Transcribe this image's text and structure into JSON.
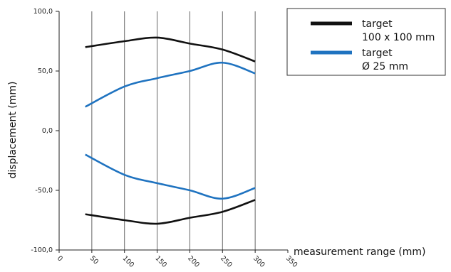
{
  "chart_data": {
    "type": "line",
    "xlabel": "measurement range (mm)",
    "ylabel": "displacement (mm)",
    "xlim": [
      0,
      350
    ],
    "ylim": [
      -100,
      100
    ],
    "x_ticks": [
      "0",
      "50",
      "100",
      "150",
      "200",
      "250",
      "300",
      "350"
    ],
    "y_ticks": [
      "100,0",
      "50,0",
      "0,0",
      "-50,0",
      "-100,0"
    ],
    "grid": "vertical",
    "legend_position": "top-right",
    "legend": [
      {
        "line1": "target",
        "line2": "100 x 100 mm",
        "color": "#111111"
      },
      {
        "line1": "target",
        "line2": "Ø 25 mm",
        "color": "#1f73c0"
      }
    ],
    "series": [
      {
        "legend_index": 0,
        "color": "#111111",
        "x": [
          40,
          100,
          150,
          200,
          250,
          300
        ],
        "y": [
          70,
          75,
          78,
          73,
          68,
          58
        ]
      },
      {
        "legend_index": 0,
        "color": "#111111",
        "x": [
          40,
          100,
          150,
          200,
          250,
          300
        ],
        "y": [
          -70,
          -75,
          -78,
          -73,
          -68,
          -58
        ]
      },
      {
        "legend_index": 1,
        "color": "#1f73c0",
        "x": [
          40,
          100,
          150,
          200,
          250,
          300
        ],
        "y": [
          20,
          37,
          44,
          50,
          57,
          48
        ]
      },
      {
        "legend_index": 1,
        "color": "#1f73c0",
        "x": [
          40,
          100,
          150,
          200,
          250,
          300
        ],
        "y": [
          -20,
          -37,
          -44,
          -50,
          -57,
          -48
        ]
      }
    ]
  }
}
